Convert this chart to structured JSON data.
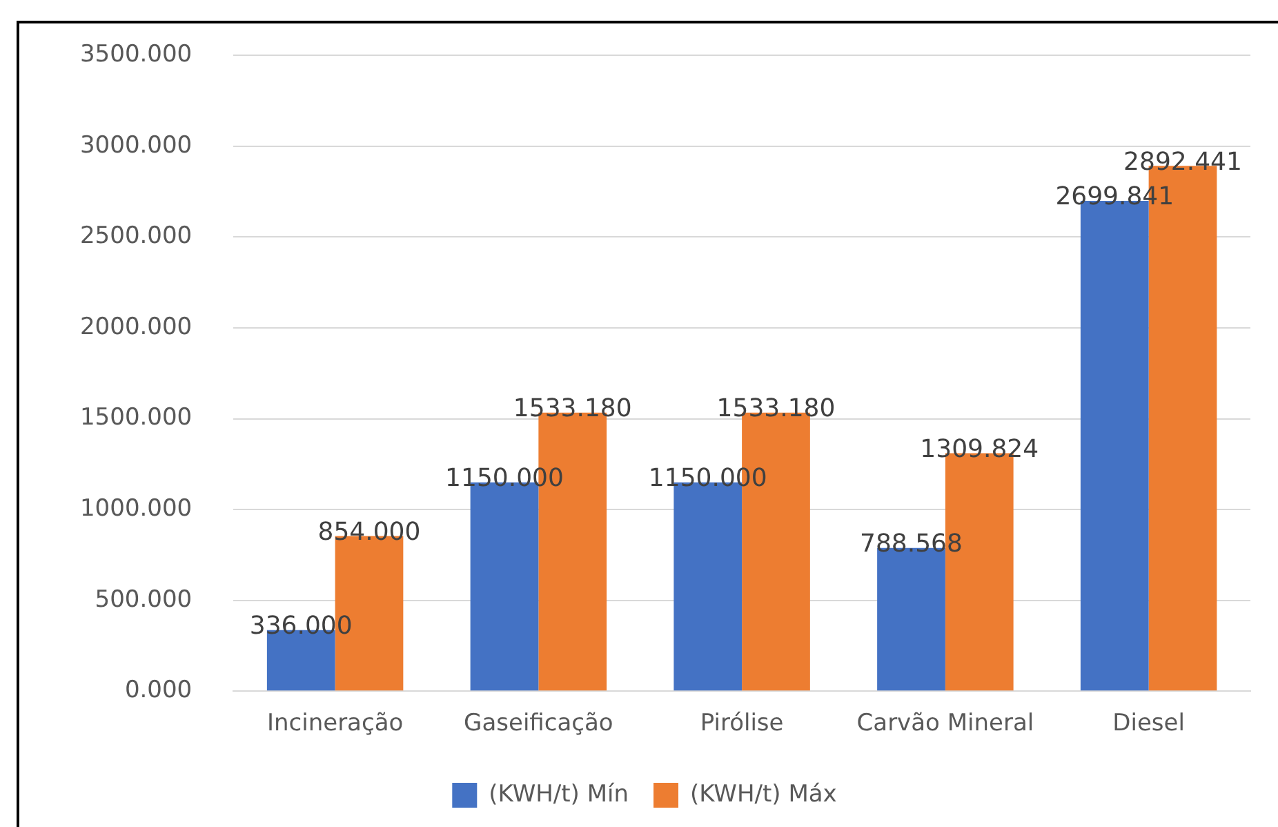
{
  "chart_data": {
    "type": "bar",
    "categories": [
      "Incineração",
      "Gaseificação",
      "Pirólise",
      "Carvão Mineral",
      "Diesel"
    ],
    "series": [
      {
        "name": "(KWH/t) Mín",
        "color": "#4472c4",
        "values": [
          336,
          1150,
          1150,
          788.568,
          2699.841
        ],
        "value_labels": [
          "336.000",
          "1150.000",
          "1150.000",
          "788.568",
          "2699.841"
        ]
      },
      {
        "name": "(KWH/t) Máx",
        "color": "#ed7d31",
        "values": [
          854,
          1533.18,
          1533.18,
          1309.824,
          2892.441
        ],
        "value_labels": [
          "854.000",
          "1533.180",
          "1533.180",
          "1309.824",
          "2892.441"
        ]
      }
    ],
    "ylim": [
      0,
      3500
    ],
    "yticks": [
      {
        "value": 0,
        "label": "0.000"
      },
      {
        "value": 500,
        "label": "500.000"
      },
      {
        "value": 1000,
        "label": "1000.000"
      },
      {
        "value": 1500,
        "label": "1500.000"
      },
      {
        "value": 2000,
        "label": "2000.000"
      },
      {
        "value": 2500,
        "label": "2500.000"
      },
      {
        "value": 3000,
        "label": "3000.000"
      },
      {
        "value": 3500,
        "label": "3500.000"
      }
    ],
    "grid": "y",
    "legend": "bottom"
  }
}
